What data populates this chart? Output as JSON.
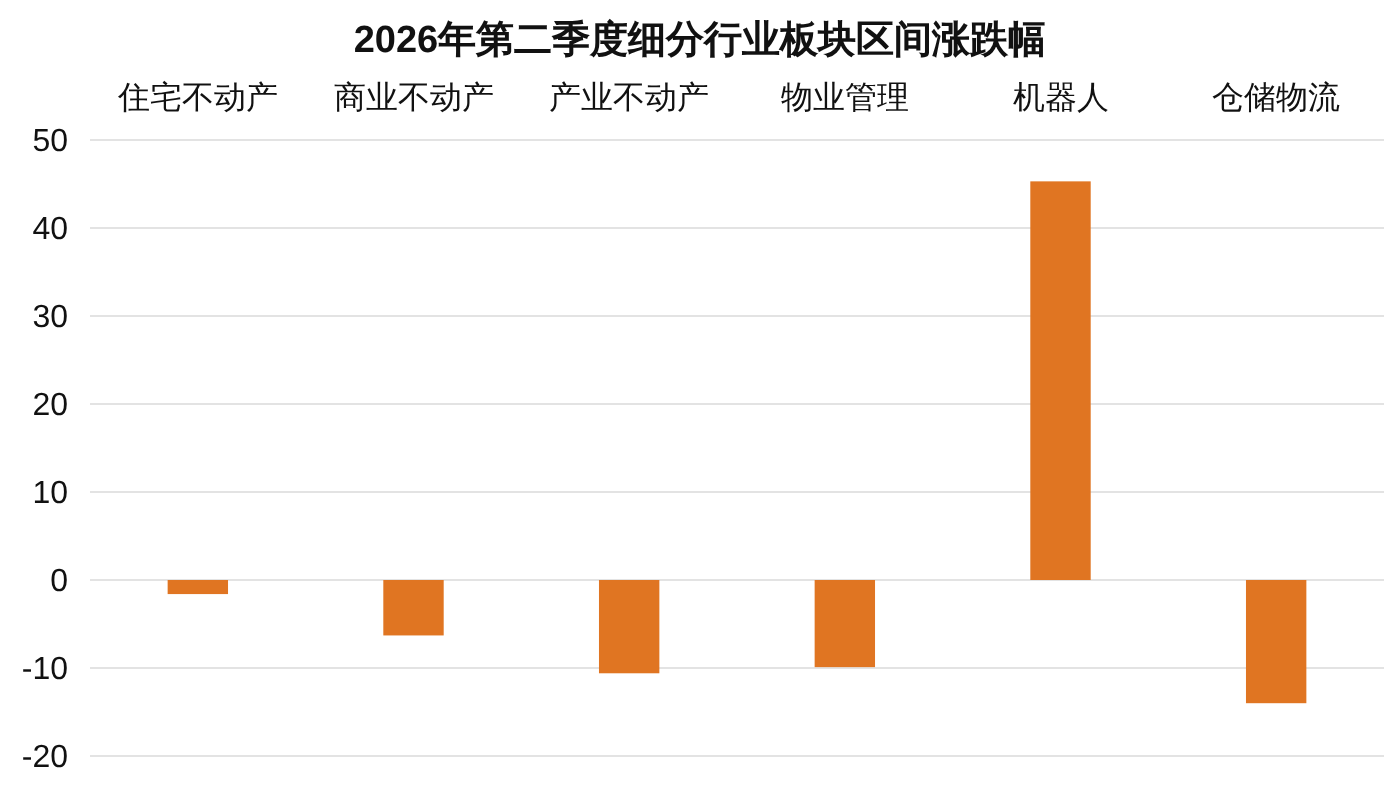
{
  "chart_data": {
    "type": "bar",
    "title": "2026年第二季度细分行业板块区间涨跌幅",
    "categories": [
      "住宅不动产",
      "商业不动产",
      "产业不动产",
      "物业管理",
      "机器人",
      "仓储物流"
    ],
    "values": [
      -1.6,
      -6.3,
      -10.6,
      -9.9,
      45.3,
      -14.0
    ],
    "color": "#e07522",
    "ylim": [
      -20,
      50
    ],
    "yticks": [
      -20,
      -10,
      0,
      10,
      20,
      30,
      40,
      50
    ],
    "grid": "y"
  }
}
